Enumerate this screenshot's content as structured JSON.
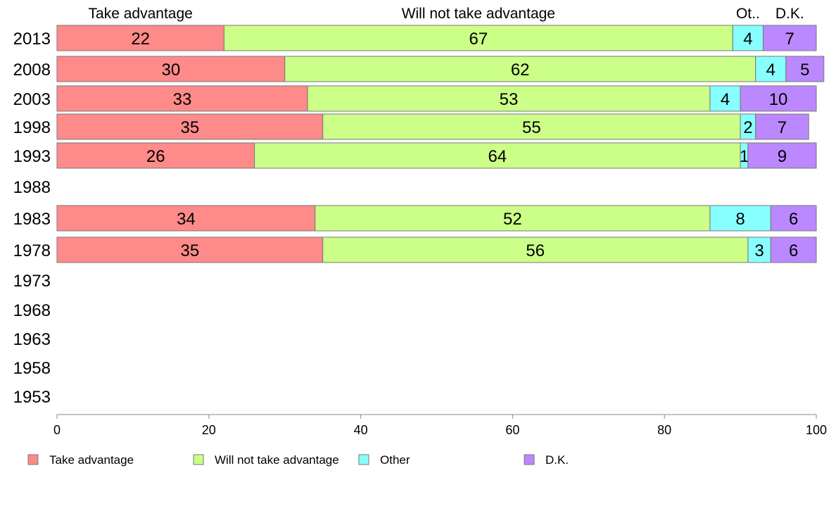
{
  "chart_data": {
    "type": "bar",
    "orientation": "horizontal",
    "stacked": true,
    "categories": [
      "2013",
      "2008",
      "2003",
      "1998",
      "1993",
      "1988",
      "1983",
      "1978",
      "1973",
      "1968",
      "1963",
      "1958",
      "1953"
    ],
    "series": [
      {
        "name": "Take advantage",
        "header": "Take advantage",
        "color": "#ff8a8a",
        "values": [
          22,
          30,
          33,
          35,
          26,
          null,
          34,
          35,
          null,
          null,
          null,
          null,
          null
        ]
      },
      {
        "name": "Will not take advantage",
        "header": "Will not take advantage",
        "color": "#ccff88",
        "values": [
          67,
          62,
          53,
          55,
          64,
          null,
          52,
          56,
          null,
          null,
          null,
          null,
          null
        ]
      },
      {
        "name": "Other",
        "header": "Ot..",
        "color": "#88ffff",
        "values": [
          4,
          4,
          4,
          2,
          1,
          null,
          8,
          3,
          null,
          null,
          null,
          null,
          null
        ]
      },
      {
        "name": "D.K.",
        "header": "D.K.",
        "color": "#bb88ff",
        "values": [
          7,
          5,
          10,
          7,
          9,
          null,
          6,
          6,
          null,
          null,
          null,
          null,
          null
        ]
      }
    ],
    "xlim": [
      0,
      100
    ],
    "xticks": [
      0,
      20,
      40,
      60,
      80,
      100
    ],
    "xlabel": "",
    "ylabel": "",
    "title": "",
    "grid": false,
    "legend": "bottom"
  }
}
